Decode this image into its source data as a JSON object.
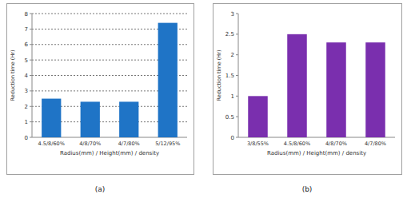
{
  "chart_data": [
    {
      "type": "bar",
      "title": "(a)",
      "x_label": "Radius(mm) / Height(mm) / density",
      "y_label": "Reduction time (Hr)",
      "categories": [
        "4.5/8/60%",
        "4/8/70%",
        "4/7/80%",
        "5/12/95%"
      ],
      "values": [
        2.5,
        2.3,
        2.3,
        7.4
      ],
      "color": "#1f74c6",
      "ylim": [
        0,
        8
      ],
      "yticks": [
        0,
        1,
        2,
        3,
        4,
        5,
        6,
        7,
        8
      ],
      "grid": true
    },
    {
      "type": "bar",
      "title": "(b)",
      "x_label": "Radius(mm) / Height(mm) / density",
      "y_label": "Reduction time (Hr)",
      "categories": [
        "3/8/55%",
        "4.5/8/60%",
        "4/8/70%",
        "4/7/80%"
      ],
      "values": [
        1.0,
        2.5,
        2.3,
        2.3
      ],
      "color": "#7a2fae",
      "ylim": [
        0,
        3
      ],
      "yticks": [
        0,
        0.5,
        1,
        1.5,
        2,
        2.5,
        3
      ],
      "grid": false
    }
  ]
}
